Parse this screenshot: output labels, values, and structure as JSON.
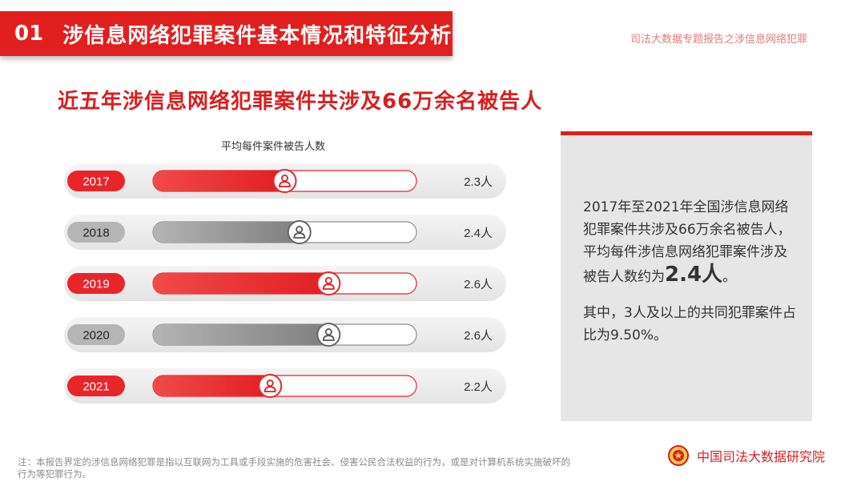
{
  "header": {
    "section_number": "01",
    "section_title": "涉信息网络犯罪案件基本情况和特征分析",
    "report_name": "司法大数据专题报告之涉信息网络犯罪"
  },
  "headline": "近五年涉信息网络犯罪案件共涉及66万余名被告人",
  "chart_data": {
    "type": "bar",
    "orientation": "horizontal",
    "title": "平均每件案件被告人数",
    "categories": [
      "2017",
      "2018",
      "2019",
      "2020",
      "2021"
    ],
    "values": [
      2.3,
      2.4,
      2.6,
      2.6,
      2.2
    ],
    "value_labels": [
      "2.3人",
      "2.4人",
      "2.6人",
      "2.6人",
      "2.2人"
    ],
    "bar_colors": [
      "#e8262a",
      "#8f8f8f",
      "#e8262a",
      "#8f8f8f",
      "#e8262a"
    ],
    "xlim": [
      1.4,
      3.2
    ],
    "marker_icon": "person-icon"
  },
  "side_panel": {
    "text1_main": "2017年至2021年全国涉信息网络犯罪案件共涉及66万余名被告人，平均每件涉信息网络犯罪案件涉及被告人数约为",
    "text1_highlight": "2.4人",
    "text1_end": "。",
    "text2": "其中，3人及以上的共同犯罪案件占比为9.50%。",
    "accent_color": "#e0201f"
  },
  "footnote": "注：本报告界定的涉信息网络犯罪是指以互联网为工具或手段实施的危害社会、侵害公民合法权益的行为，或是对计算机系统实施破坏的行为等犯罪行为。",
  "footer": {
    "org_name": "中国司法大数据研究院",
    "emblem_icon": "court-emblem-icon"
  }
}
